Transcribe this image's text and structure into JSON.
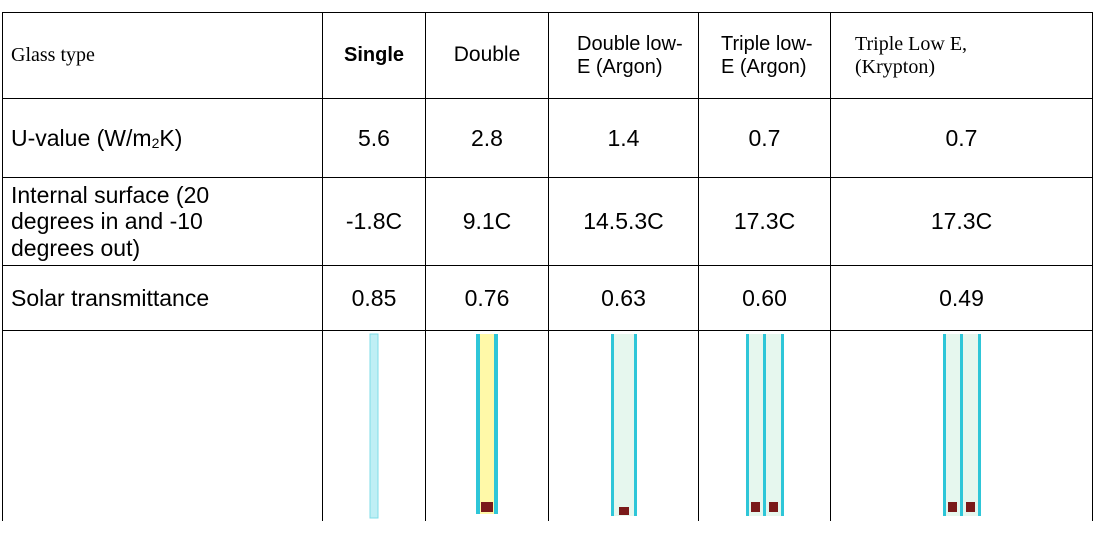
{
  "table": {
    "header": [
      "Glass type",
      "Single",
      "Double",
      "Double low-E (Argon)",
      "Triple low-E (Argon)",
      "Triple Low E, (Krypton)"
    ],
    "rows": [
      {
        "label": [
          "U-value (W/m",
          "2",
          "K)"
        ],
        "values": [
          "5.6",
          "2.8",
          "1.4",
          "0.7",
          "0.7"
        ]
      },
      {
        "label": [
          "Internal surface (20 degrees in and -10 degrees out)"
        ],
        "values": [
          "-1.8C",
          "9.1C",
          "14.5.3C",
          "17.3C",
          "17.3C"
        ]
      },
      {
        "label": [
          "Solar transmittance"
        ],
        "values": [
          "0.85",
          "0.76",
          "0.63",
          "0.60",
          "0.49"
        ]
      }
    ]
  }
}
